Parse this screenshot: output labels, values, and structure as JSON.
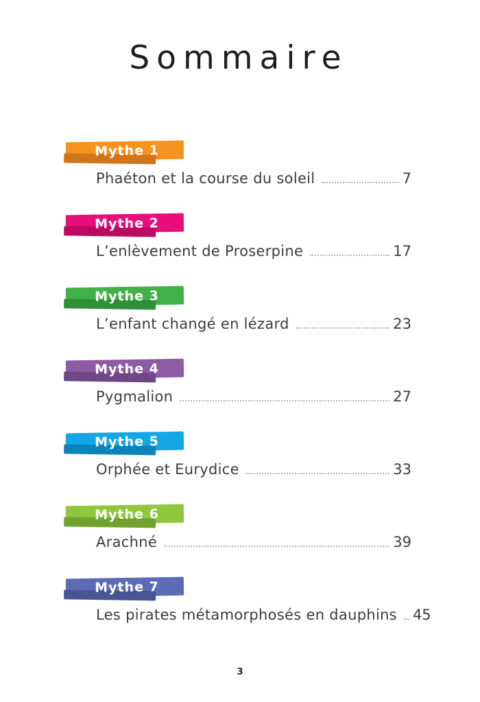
{
  "page": {
    "title": "Sommaire",
    "footer_page_number": "3"
  },
  "toc": {
    "entries": [
      {
        "badge": "Mythe 1",
        "title": "Phaéton et la course du soleil",
        "page": "7",
        "color": "#F6921E",
        "shadow_color": "#D2751A"
      },
      {
        "badge": "Mythe 2",
        "title": "L’enlèvement de Proserpine",
        "page": "17",
        "color": "#E90C7B",
        "shadow_color": "#BE0963"
      },
      {
        "badge": "Mythe 3",
        "title": "L’enfant changé en lézard",
        "page": "23",
        "color": "#41B149",
        "shadow_color": "#2F9038"
      },
      {
        "badge": "Mythe 4",
        "title": "Pygmalion",
        "page": "27",
        "color": "#8C5BA4",
        "shadow_color": "#6F4786"
      },
      {
        "badge": "Mythe 5",
        "title": "Orphée et Eurydice",
        "page": "33",
        "color": "#14A7E6",
        "shadow_color": "#0C83BA"
      },
      {
        "badge": "Mythe 6",
        "title": "Arachné",
        "page": "39",
        "color": "#8FC83E",
        "shadow_color": "#71A230"
      },
      {
        "badge": "Mythe 7",
        "title": "Les pirates métamorphosés en dauphins",
        "page": "45",
        "color": "#5D6BB7",
        "shadow_color": "#485494"
      }
    ]
  }
}
